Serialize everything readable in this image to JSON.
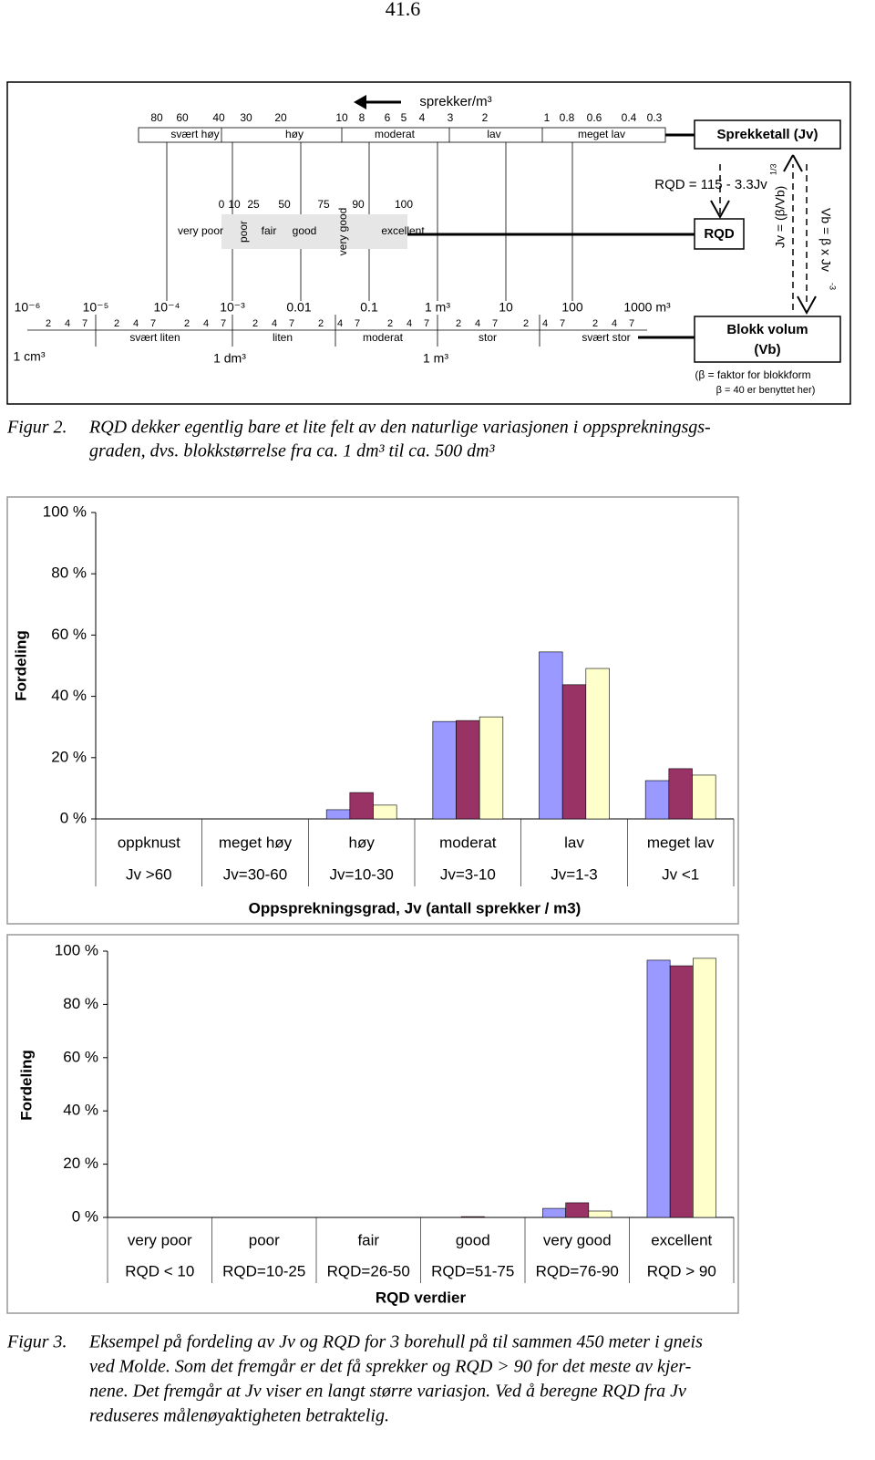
{
  "page_number": "41.6",
  "figure2": {
    "jv_header": "sprekker/m³",
    "jv_values": [
      "80",
      "60",
      "40",
      "30",
      "20",
      "10",
      "8",
      "6",
      "5",
      "4",
      "3",
      "2",
      "1",
      "0.8",
      "0.6",
      "0.4",
      "0.3"
    ],
    "jv_classes": [
      "svært høy",
      "høy",
      "moderat",
      "lav",
      "meget lav"
    ],
    "jv_box": "Sprekketall  (Jv)",
    "rqd_formula": "RQD = 115 - 3.3Jv",
    "rqd_box": "RQD",
    "jv_formula": "Jv = (β/Vb)",
    "jv_formula_exp": "1/3",
    "vb_formula": "Vb = β x Jv",
    "vb_formula_exp": "-3",
    "rqd_values": [
      "0",
      "10",
      "25",
      "50",
      "75",
      "90",
      "100"
    ],
    "rqd_classes": [
      "very poor",
      "poor",
      "fair",
      "good",
      "very good",
      "excellent"
    ],
    "volume_values": [
      "10⁻⁶",
      "10⁻⁵",
      "10⁻⁴",
      "10⁻³",
      "0.01",
      "0.1",
      "1 m³",
      "10",
      "100",
      "1000  m³"
    ],
    "volume_minor": [
      "2",
      "4",
      "7"
    ],
    "volume_classes": [
      "svært liten",
      "liten",
      "moderat",
      "stor",
      "svært stor"
    ],
    "volume_units": [
      "1 cm³",
      "1 dm³",
      "1 m³"
    ],
    "volume_box": [
      "Blokk volum",
      "(Vb)"
    ],
    "beta_note": [
      "(β = faktor for blokkform",
      "β = 40 er benyttet her)"
    ]
  },
  "caption2": {
    "label": "Figur 2.",
    "lines": [
      "RQD dekker egentlig bare et lite felt av den naturlige variasjonen i oppsprekningsgs-",
      "graden, dvs. blokkstørrelse fra ca. 1 dm³  til ca. 500 dm³"
    ]
  },
  "chart_data": [
    {
      "type": "bar",
      "y_label": "Fordeling",
      "x_label": "Oppsprekningsgrad, Jv  (antall sprekker / m3)",
      "categories": [
        "oppknust",
        "meget høy",
        "høy",
        "moderat",
        "lav",
        "meget lav"
      ],
      "category_details": [
        "Jv >60",
        "Jv=30-60",
        "Jv=10-30",
        "Jv=3-10",
        "Jv=1-3",
        "Jv <1"
      ],
      "series": [
        {
          "color": "#9999ff",
          "values": [
            0,
            0,
            3.0,
            31.8,
            54.5,
            12.5
          ]
        },
        {
          "color": "#993366",
          "values": [
            0,
            0,
            8.6,
            32.1,
            43.8,
            16.4
          ]
        },
        {
          "color": "#ffffcc",
          "values": [
            0,
            0,
            4.5,
            33.3,
            49.1,
            14.3
          ]
        }
      ],
      "ylim": [
        0,
        100
      ],
      "yticks": [
        {
          "value": 0,
          "label": "0 %"
        },
        {
          "value": 20,
          "label": "20 %"
        },
        {
          "value": 40,
          "label": "40 %"
        },
        {
          "value": 60,
          "label": "60 %"
        },
        {
          "value": 80,
          "label": "80 %"
        },
        {
          "value": 100,
          "label": "100 %"
        }
      ],
      "grid": false
    },
    {
      "type": "bar",
      "y_label": "Fordeling",
      "x_label": "RQD verdier",
      "categories": [
        "very poor",
        "poor",
        "fair",
        "good",
        "very good",
        "excellent"
      ],
      "category_details": [
        "RQD < 10",
        "RQD=10-25",
        "RQD=26-50",
        "RQD=51-75",
        "RQD=76-90",
        "RQD > 90"
      ],
      "series": [
        {
          "color": "#9999ff",
          "values": [
            0,
            0,
            0,
            0,
            3.4,
            96.6
          ]
        },
        {
          "color": "#993366",
          "values": [
            0,
            0,
            0,
            0.3,
            5.5,
            94.5
          ]
        },
        {
          "color": "#ffffcc",
          "values": [
            0,
            0,
            0,
            0,
            2.4,
            97.3
          ]
        }
      ],
      "ylim": [
        0,
        100
      ],
      "yticks": [
        {
          "value": 0,
          "label": "0 %"
        },
        {
          "value": 20,
          "label": "20 %"
        },
        {
          "value": 40,
          "label": "40 %"
        },
        {
          "value": 60,
          "label": "60 %"
        },
        {
          "value": 80,
          "label": "80 %"
        },
        {
          "value": 100,
          "label": "100 %"
        }
      ],
      "grid": false
    }
  ],
  "caption3": {
    "label": "Figur 3.",
    "lines": [
      "Eksempel på fordeling av Jv og RQD for 3 borehull på til sammen 450 meter i gneis",
      "ved Molde. Som det fremgår er det få sprekker og RQD > 90 for det meste av kjer-",
      "nene. Det fremgår at  Jv  viser en langt større variasjon. Ved å beregne RQD fra  Jv",
      "reduseres målenøyaktigheten betraktelig."
    ]
  }
}
